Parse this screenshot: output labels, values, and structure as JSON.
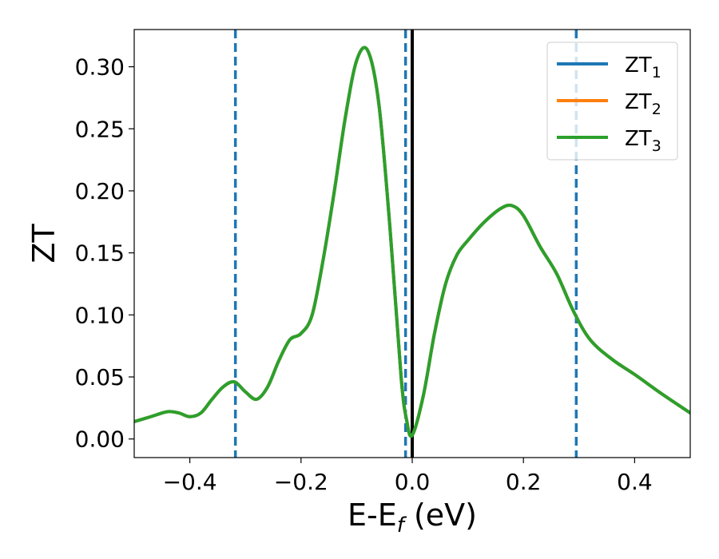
{
  "chart_data": {
    "type": "line",
    "xlabel": "E-E",
    "xlabel_sub": "f",
    "xlabel_unit": " (eV)",
    "ylabel": "ZT",
    "xlim": [
      -0.5,
      0.5
    ],
    "ylim": [
      -0.015,
      0.33
    ],
    "x_ticks": [
      -0.4,
      -0.2,
      0.0,
      0.2,
      0.4
    ],
    "x_tick_labels": [
      "−0.4",
      "−0.2",
      "0.0",
      "0.2",
      "0.4"
    ],
    "y_ticks": [
      0.0,
      0.05,
      0.1,
      0.15,
      0.2,
      0.25,
      0.3
    ],
    "y_tick_labels": [
      "0.00",
      "0.05",
      "0.10",
      "0.15",
      "0.20",
      "0.25",
      "0.30"
    ],
    "grid": false,
    "legend_position": "top-right",
    "vertical_lines": [
      {
        "x": -0.318,
        "style": "dashed",
        "color": "#1f77b4"
      },
      {
        "x": -0.012,
        "style": "dashed",
        "color": "#1f77b4"
      },
      {
        "x": 0.0,
        "style": "solid",
        "color": "#000000"
      },
      {
        "x": 0.295,
        "style": "dashed",
        "color": "#1f77b4"
      }
    ],
    "x": [
      -0.5,
      -0.47,
      -0.44,
      -0.42,
      -0.4,
      -0.38,
      -0.36,
      -0.34,
      -0.32,
      -0.3,
      -0.28,
      -0.26,
      -0.24,
      -0.22,
      -0.2,
      -0.18,
      -0.16,
      -0.14,
      -0.12,
      -0.1,
      -0.08,
      -0.06,
      -0.04,
      -0.02,
      -0.01,
      0.0,
      0.02,
      0.04,
      0.06,
      0.08,
      0.1,
      0.13,
      0.16,
      0.18,
      0.2,
      0.23,
      0.26,
      0.29,
      0.32,
      0.36,
      0.4,
      0.45,
      0.5
    ],
    "series": [
      {
        "name": "ZT",
        "name_sub": "1",
        "color": "#1f77b4",
        "values": [
          0.014,
          0.018,
          0.022,
          0.021,
          0.018,
          0.021,
          0.032,
          0.042,
          0.046,
          0.038,
          0.032,
          0.042,
          0.063,
          0.08,
          0.085,
          0.1,
          0.145,
          0.2,
          0.26,
          0.305,
          0.313,
          0.27,
          0.17,
          0.05,
          0.015,
          0.003,
          0.035,
          0.085,
          0.125,
          0.148,
          0.16,
          0.175,
          0.186,
          0.188,
          0.18,
          0.155,
          0.133,
          0.103,
          0.08,
          0.064,
          0.052,
          0.036,
          0.021
        ]
      },
      {
        "name": "ZT",
        "name_sub": "2",
        "color": "#ff7f0e",
        "values": [
          0.014,
          0.018,
          0.022,
          0.021,
          0.018,
          0.021,
          0.032,
          0.042,
          0.046,
          0.038,
          0.032,
          0.042,
          0.063,
          0.08,
          0.085,
          0.1,
          0.145,
          0.2,
          0.26,
          0.305,
          0.313,
          0.27,
          0.17,
          0.05,
          0.015,
          0.003,
          0.035,
          0.085,
          0.125,
          0.148,
          0.16,
          0.175,
          0.186,
          0.188,
          0.18,
          0.155,
          0.133,
          0.103,
          0.08,
          0.064,
          0.052,
          0.036,
          0.021
        ]
      },
      {
        "name": "ZT",
        "name_sub": "3",
        "color": "#2ca02c",
        "values": [
          0.014,
          0.018,
          0.022,
          0.021,
          0.018,
          0.021,
          0.032,
          0.042,
          0.046,
          0.038,
          0.032,
          0.042,
          0.063,
          0.08,
          0.085,
          0.1,
          0.145,
          0.2,
          0.26,
          0.305,
          0.313,
          0.27,
          0.17,
          0.05,
          0.015,
          0.003,
          0.035,
          0.085,
          0.125,
          0.148,
          0.16,
          0.175,
          0.186,
          0.188,
          0.18,
          0.155,
          0.133,
          0.103,
          0.08,
          0.064,
          0.052,
          0.036,
          0.021
        ]
      }
    ]
  }
}
